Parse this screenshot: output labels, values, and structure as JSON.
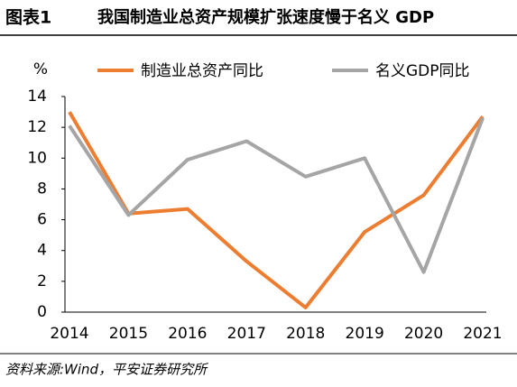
{
  "chart_data": {
    "type": "line",
    "figure_label": "图表1",
    "title": "我国制造业总资产规模扩张速度慢于名义 GDP",
    "y_unit": "%",
    "source": "资料来源:Wind，平安证券研究所",
    "categories": [
      "2014",
      "2015",
      "2016",
      "2017",
      "2018",
      "2019",
      "2020",
      "2021"
    ],
    "series": [
      {
        "name": "制造业总资产同比",
        "color": "#ed7d31",
        "values": [
          13.0,
          6.4,
          6.7,
          3.3,
          0.3,
          5.2,
          7.6,
          12.7
        ]
      },
      {
        "name": "名义GDP同比",
        "color": "#a5a5a5",
        "values": [
          12.1,
          6.3,
          9.9,
          11.1,
          8.8,
          10.0,
          2.6,
          12.6
        ]
      }
    ],
    "ylim": [
      0,
      14
    ],
    "yticks": [
      0,
      2,
      4,
      6,
      8,
      10,
      12,
      14
    ],
    "grid": false,
    "legend": "top"
  }
}
